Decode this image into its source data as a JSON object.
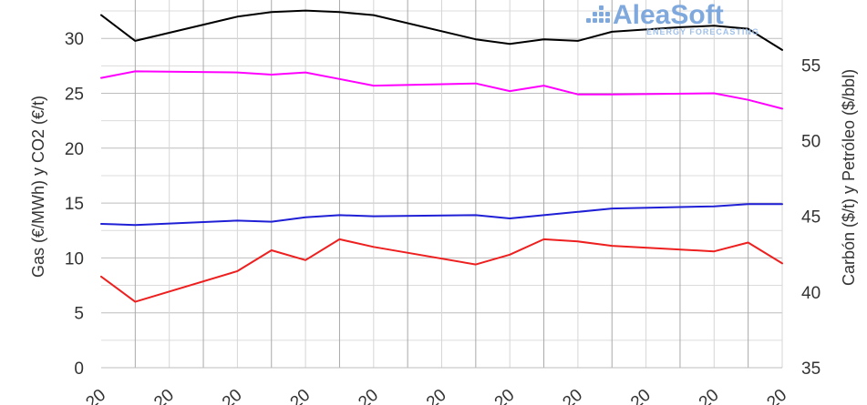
{
  "chart_data": {
    "type": "line",
    "x": [
      0,
      1,
      2,
      3,
      4,
      5,
      6,
      7,
      8,
      9,
      10,
      11,
      12,
      13,
      14,
      15,
      16,
      17,
      18,
      19,
      20
    ],
    "x_tick_labels": [
      "20",
      "20",
      "20",
      "20",
      "20",
      "20",
      "20",
      "20",
      "20",
      "20",
      "20"
    ],
    "ylabel_left": "Gas (€/MWh) y CO2 (€/t)",
    "ylabel_right": "Carbón ($/t) y Petróleo ($/bbl)",
    "ylim_left": [
      0,
      33.5
    ],
    "ylim_right": [
      35,
      59.3
    ],
    "y_ticks_left": [
      "0",
      "5",
      "10",
      "15",
      "20",
      "25",
      "30"
    ],
    "y_ticks_right": [
      "35",
      "40",
      "45",
      "50",
      "55"
    ],
    "grid": true,
    "series": [
      {
        "axis": "right",
        "color": "#000000",
        "values": [
          {
            "x": 0,
            "y": 58.3
          },
          {
            "x": 1,
            "y": 56.6
          },
          {
            "x": 4,
            "y": 58.2
          },
          {
            "x": 5,
            "y": 58.5
          },
          {
            "x": 6,
            "y": 58.6
          },
          {
            "x": 7,
            "y": 58.5
          },
          {
            "x": 8,
            "y": 58.3
          },
          {
            "x": 11,
            "y": 56.7
          },
          {
            "x": 12,
            "y": 56.4
          },
          {
            "x": 13,
            "y": 56.7
          },
          {
            "x": 14,
            "y": 56.6
          },
          {
            "x": 15,
            "y": 57.2
          },
          {
            "x": 17,
            "y": 57.5
          },
          {
            "x": 18,
            "y": 57.6
          },
          {
            "x": 19,
            "y": 57.4
          },
          {
            "x": 20,
            "y": 56.0
          }
        ]
      },
      {
        "axis": "left",
        "color": "#ff00ff",
        "values": [
          {
            "x": 0,
            "y": 26.4
          },
          {
            "x": 1,
            "y": 27.0
          },
          {
            "x": 4,
            "y": 26.9
          },
          {
            "x": 5,
            "y": 26.7
          },
          {
            "x": 6,
            "y": 26.9
          },
          {
            "x": 7,
            "y": 26.3
          },
          {
            "x": 8,
            "y": 25.7
          },
          {
            "x": 11,
            "y": 25.9
          },
          {
            "x": 12,
            "y": 25.2
          },
          {
            "x": 13,
            "y": 25.7
          },
          {
            "x": 14,
            "y": 24.9
          },
          {
            "x": 15,
            "y": 24.9
          },
          {
            "x": 18,
            "y": 25.0
          },
          {
            "x": 19,
            "y": 24.4
          },
          {
            "x": 20,
            "y": 23.6
          }
        ]
      },
      {
        "axis": "left",
        "color": "#1f1fd6",
        "values": [
          {
            "x": 0,
            "y": 13.1
          },
          {
            "x": 1,
            "y": 13.0
          },
          {
            "x": 4,
            "y": 13.4
          },
          {
            "x": 5,
            "y": 13.3
          },
          {
            "x": 6,
            "y": 13.7
          },
          {
            "x": 7,
            "y": 13.9
          },
          {
            "x": 8,
            "y": 13.8
          },
          {
            "x": 11,
            "y": 13.9
          },
          {
            "x": 12,
            "y": 13.6
          },
          {
            "x": 13,
            "y": 13.9
          },
          {
            "x": 14,
            "y": 14.2
          },
          {
            "x": 15,
            "y": 14.5
          },
          {
            "x": 18,
            "y": 14.7
          },
          {
            "x": 19,
            "y": 14.9
          },
          {
            "x": 20,
            "y": 14.9
          }
        ]
      },
      {
        "axis": "left",
        "color": "#ee1f1f",
        "values": [
          {
            "x": 0,
            "y": 8.3
          },
          {
            "x": 1,
            "y": 6.0
          },
          {
            "x": 4,
            "y": 8.8
          },
          {
            "x": 5,
            "y": 10.7
          },
          {
            "x": 6,
            "y": 9.8
          },
          {
            "x": 7,
            "y": 11.7
          },
          {
            "x": 8,
            "y": 11.0
          },
          {
            "x": 11,
            "y": 9.4
          },
          {
            "x": 12,
            "y": 10.3
          },
          {
            "x": 13,
            "y": 11.7
          },
          {
            "x": 14,
            "y": 11.5
          },
          {
            "x": 15,
            "y": 11.1
          },
          {
            "x": 18,
            "y": 10.6
          },
          {
            "x": 19,
            "y": 11.4
          },
          {
            "x": 20,
            "y": 9.5
          }
        ]
      }
    ]
  },
  "logo": {
    "name": "AleaSoft",
    "tagline": "ENERGY FORECASTING",
    "color": "#7fa9dd"
  }
}
